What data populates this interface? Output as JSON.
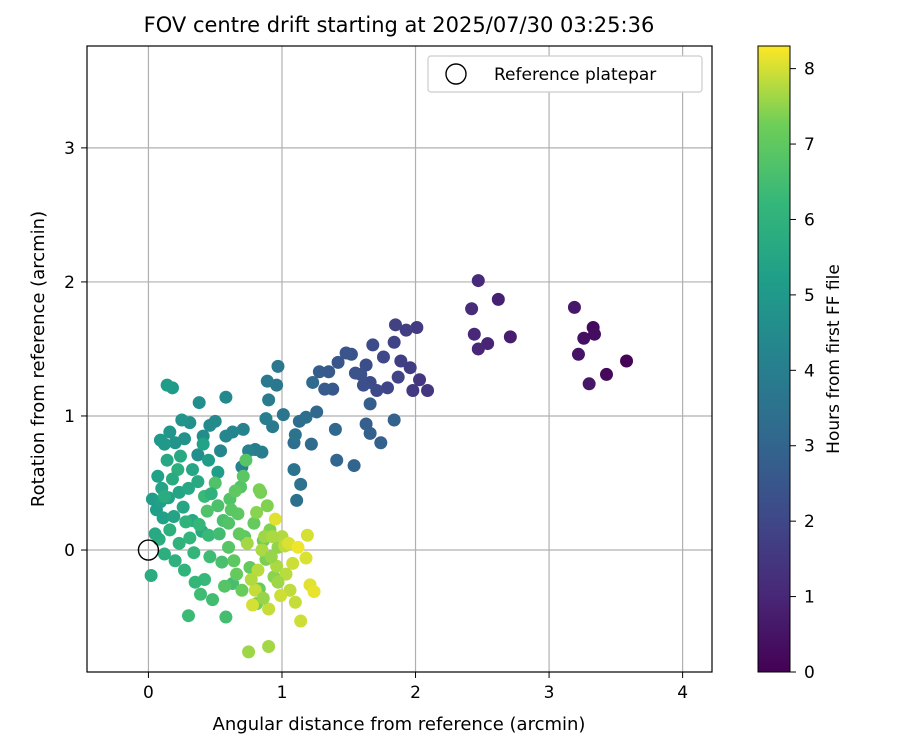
{
  "chart_data": {
    "type": "scatter",
    "title": "FOV centre drift starting at 2025/07/30 03:25:36",
    "xlabel": "Angular distance from reference (arcmin)",
    "ylabel": "Rotation from reference (arcmin)",
    "xlim": [
      -0.46,
      4.22
    ],
    "ylim": [
      -0.91,
      3.76
    ],
    "x_ticks": [
      0,
      1,
      2,
      3,
      4
    ],
    "y_ticks": [
      0,
      1,
      2,
      3
    ],
    "grid": true,
    "legend": {
      "position": "top-right",
      "entries": [
        {
          "label": "Reference platepar",
          "marker": "open-circle"
        }
      ]
    },
    "reference_point": {
      "x": 0,
      "y": 0
    },
    "colorbar": {
      "label": "Hours from first FF file",
      "range": [
        0,
        8.3
      ],
      "ticks": [
        0,
        1,
        2,
        3,
        4,
        5,
        6,
        7,
        8
      ],
      "colormap": "viridis"
    },
    "series": [
      {
        "points": [
          [
            3.58,
            1.41,
            0.1
          ],
          [
            3.43,
            1.31,
            0.18
          ],
          [
            3.33,
            1.66,
            0.25
          ],
          [
            3.34,
            1.61,
            0.32
          ],
          [
            3.26,
            1.58,
            0.4
          ],
          [
            3.22,
            1.46,
            0.48
          ],
          [
            3.3,
            1.24,
            0.55
          ],
          [
            3.19,
            1.81,
            0.62
          ],
          [
            2.71,
            1.59,
            0.75
          ],
          [
            2.62,
            1.87,
            0.85
          ],
          [
            2.54,
            1.54,
            0.92
          ],
          [
            2.47,
            1.5,
            1.0
          ],
          [
            2.44,
            1.61,
            1.05
          ],
          [
            2.47,
            2.01,
            1.1
          ],
          [
            2.42,
            1.8,
            1.15
          ],
          [
            2.09,
            1.19,
            1.45
          ],
          [
            2.03,
            1.27,
            1.5
          ],
          [
            1.98,
            1.19,
            1.55
          ],
          [
            2.01,
            1.66,
            1.6
          ],
          [
            1.96,
            1.36,
            1.65
          ],
          [
            1.93,
            1.64,
            1.7
          ],
          [
            1.89,
            1.41,
            1.75
          ],
          [
            1.85,
            1.68,
            1.8
          ],
          [
            1.87,
            1.29,
            1.85
          ],
          [
            1.84,
            1.55,
            1.9
          ],
          [
            1.79,
            1.21,
            1.95
          ],
          [
            1.76,
            1.44,
            2.0
          ],
          [
            1.71,
            1.19,
            2.05
          ],
          [
            1.68,
            1.53,
            2.1
          ],
          [
            1.66,
            1.25,
            2.15
          ],
          [
            1.63,
            1.38,
            2.2
          ],
          [
            1.61,
            1.23,
            2.25
          ],
          [
            1.59,
            1.31,
            2.3
          ],
          [
            1.55,
            1.32,
            2.35
          ],
          [
            1.52,
            1.46,
            2.4
          ],
          [
            1.48,
            1.47,
            2.45
          ],
          [
            1.42,
            1.4,
            2.5
          ],
          [
            1.38,
            1.2,
            2.55
          ],
          [
            1.35,
            1.33,
            2.6
          ],
          [
            1.32,
            1.2,
            2.65
          ],
          [
            1.28,
            1.33,
            2.7
          ],
          [
            1.66,
            1.09,
            2.75
          ],
          [
            1.63,
            0.94,
            2.8
          ],
          [
            1.66,
            0.87,
            2.85
          ],
          [
            1.74,
            0.8,
            2.9
          ],
          [
            1.84,
            0.97,
            2.95
          ],
          [
            1.54,
            0.63,
            3.0
          ],
          [
            1.41,
            0.67,
            3.05
          ],
          [
            1.4,
            0.9,
            3.1
          ],
          [
            1.26,
            1.03,
            3.15
          ],
          [
            1.23,
            1.25,
            3.2
          ],
          [
            1.22,
            0.79,
            3.25
          ],
          [
            1.13,
            0.96,
            3.3
          ],
          [
            1.09,
            0.8,
            3.35
          ],
          [
            1.18,
            0.99,
            3.4
          ],
          [
            1.11,
            0.37,
            3.45
          ],
          [
            1.14,
            0.49,
            3.5
          ],
          [
            1.09,
            0.6,
            3.55
          ],
          [
            1.1,
            0.86,
            3.6
          ],
          [
            1.01,
            1.01,
            3.65
          ],
          [
            0.97,
            1.37,
            3.7
          ],
          [
            0.96,
            1.23,
            3.75
          ],
          [
            0.89,
            1.26,
            3.8
          ],
          [
            0.93,
            0.92,
            3.85
          ],
          [
            0.9,
            1.12,
            3.9
          ],
          [
            0.88,
            0.98,
            3.95
          ],
          [
            0.85,
            0.73,
            4.0
          ],
          [
            0.8,
            0.75,
            4.05
          ],
          [
            0.75,
            0.74,
            4.1
          ],
          [
            0.7,
            0.62,
            4.15
          ],
          [
            0.71,
            0.9,
            4.2
          ],
          [
            0.63,
            0.88,
            4.25
          ],
          [
            0.58,
            0.85,
            4.3
          ],
          [
            0.54,
            0.74,
            4.35
          ],
          [
            0.58,
            1.14,
            4.4
          ],
          [
            0.5,
            0.96,
            4.45
          ],
          [
            0.46,
            0.93,
            4.5
          ],
          [
            0.41,
            0.85,
            4.55
          ],
          [
            0.37,
            0.71,
            4.6
          ],
          [
            0.38,
            1.1,
            4.65
          ],
          [
            0.31,
            0.95,
            4.7
          ],
          [
            0.27,
            0.83,
            4.75
          ],
          [
            0.25,
            0.97,
            4.8
          ],
          [
            0.2,
            0.8,
            4.85
          ],
          [
            0.16,
            0.88,
            4.9
          ],
          [
            0.12,
            0.79,
            4.95
          ],
          [
            0.09,
            0.82,
            5.0
          ],
          [
            0.18,
            1.21,
            5.05
          ],
          [
            0.14,
            1.23,
            5.1
          ],
          [
            0.45,
            0.67,
            5.15
          ],
          [
            0.52,
            0.58,
            5.2
          ],
          [
            0.03,
            0.38,
            5.1
          ],
          [
            0.06,
            0.3,
            5.2
          ],
          [
            0.09,
            0.36,
            5.25
          ],
          [
            0.11,
            0.24,
            5.3
          ],
          [
            0.15,
            0.39,
            5.35
          ],
          [
            0.19,
            0.25,
            5.4
          ],
          [
            0.23,
            0.43,
            5.45
          ],
          [
            0.26,
            0.32,
            5.5
          ],
          [
            0.3,
            0.46,
            5.55
          ],
          [
            0.33,
            0.22,
            5.6
          ],
          [
            0.37,
            0.51,
            5.65
          ],
          [
            0.4,
            0.14,
            5.7
          ],
          [
            0.02,
            -0.19,
            5.75
          ],
          [
            0.08,
            0.08,
            5.8
          ],
          [
            0.12,
            -0.03,
            5.85
          ],
          [
            0.16,
            0.15,
            5.9
          ],
          [
            0.2,
            -0.08,
            5.95
          ],
          [
            0.23,
            0.05,
            6.0
          ],
          [
            0.27,
            -0.15,
            6.05
          ],
          [
            0.31,
            0.09,
            6.1
          ],
          [
            0.34,
            -0.02,
            6.15
          ],
          [
            0.38,
            0.19,
            6.2
          ],
          [
            0.42,
            -0.22,
            6.25
          ],
          [
            0.45,
            0.11,
            6.3
          ],
          [
            0.3,
            -0.49,
            6.35
          ],
          [
            0.39,
            -0.33,
            6.4
          ],
          [
            0.48,
            -0.37,
            6.45
          ],
          [
            0.58,
            -0.5,
            6.5
          ],
          [
            0.63,
            -0.25,
            6.55
          ],
          [
            0.55,
            -0.09,
            6.6
          ],
          [
            0.52,
            0.33,
            6.65
          ],
          [
            0.44,
            0.29,
            6.7
          ],
          [
            0.61,
            0.38,
            6.75
          ],
          [
            0.69,
            0.47,
            6.8
          ],
          [
            0.73,
            0.67,
            6.85
          ],
          [
            0.71,
            0.55,
            6.9
          ],
          [
            0.67,
            0.27,
            6.95
          ],
          [
            0.72,
            0.1,
            7.0
          ],
          [
            0.76,
            -0.13,
            7.05
          ],
          [
            0.79,
            0.2,
            7.1
          ],
          [
            0.83,
            -0.29,
            7.15
          ],
          [
            0.86,
            0.07,
            7.2
          ],
          [
            0.81,
            -0.4,
            7.25
          ],
          [
            0.84,
            0.43,
            7.3
          ],
          [
            0.88,
            -0.07,
            7.35
          ],
          [
            0.91,
            0.15,
            7.4
          ],
          [
            0.94,
            -0.2,
            7.45
          ],
          [
            0.97,
            0.02,
            7.5
          ],
          [
            0.75,
            -0.76,
            7.6
          ],
          [
            0.9,
            -0.72,
            7.65
          ],
          [
            0.96,
            -0.12,
            7.7
          ],
          [
            1.0,
            0.1,
            7.75
          ],
          [
            1.03,
            -0.18,
            7.8
          ],
          [
            1.06,
            -0.3,
            7.85
          ],
          [
            1.1,
            -0.39,
            7.9
          ],
          [
            1.14,
            -0.53,
            7.95
          ],
          [
            1.19,
            0.11,
            8.0
          ],
          [
            1.18,
            -0.06,
            8.05
          ],
          [
            1.21,
            -0.26,
            8.1
          ],
          [
            1.24,
            -0.31,
            8.15
          ],
          [
            0.78,
            -0.41,
            8.0
          ],
          [
            0.8,
            -0.3,
            7.9
          ],
          [
            0.82,
            -0.15,
            7.8
          ],
          [
            0.85,
            0.0,
            7.7
          ],
          [
            0.87,
            0.1,
            7.6
          ],
          [
            0.92,
            -0.05,
            7.55
          ],
          [
            0.95,
            0.23,
            8.1
          ],
          [
            0.99,
            -0.34,
            7.95
          ],
          [
            1.02,
            0.03,
            7.85
          ],
          [
            0.74,
            0.05,
            7.65
          ],
          [
            0.77,
            -0.22,
            7.75
          ],
          [
            0.9,
            -0.44,
            7.9
          ],
          [
            0.5,
            0.5,
            6.7
          ],
          [
            0.56,
            0.22,
            6.6
          ],
          [
            0.6,
            0.02,
            6.85
          ],
          [
            0.64,
            -0.08,
            6.95
          ],
          [
            0.68,
            0.12,
            7.05
          ],
          [
            0.7,
            -0.3,
            7.15
          ],
          [
            0.46,
            -0.05,
            6.4
          ],
          [
            0.42,
            0.4,
            6.3
          ],
          [
            0.35,
            -0.24,
            6.2
          ],
          [
            0.28,
            0.21,
            6.0
          ],
          [
            0.22,
            0.6,
            5.85
          ],
          [
            0.18,
            0.53,
            5.7
          ],
          [
            0.14,
            0.67,
            5.55
          ],
          [
            0.1,
            0.46,
            5.4
          ],
          [
            0.07,
            0.55,
            5.3
          ],
          [
            0.05,
            0.12,
            5.6
          ],
          [
            0.12,
            0.4,
            5.75
          ],
          [
            0.24,
            0.7,
            5.65
          ],
          [
            0.33,
            0.6,
            5.5
          ],
          [
            0.41,
            0.79,
            5.35
          ],
          [
            0.47,
            0.42,
            5.95
          ],
          [
            0.53,
            0.12,
            6.45
          ],
          [
            0.57,
            -0.27,
            6.8
          ],
          [
            0.62,
            0.3,
            6.9
          ],
          [
            0.66,
            -0.18,
            7.1
          ],
          [
            0.81,
            0.28,
            7.45
          ],
          [
            0.86,
            -0.36,
            7.55
          ],
          [
            0.93,
            0.1,
            7.7
          ],
          [
            0.97,
            -0.24,
            7.6
          ],
          [
            1.05,
            0.05,
            8.05
          ],
          [
            1.08,
            -0.1,
            7.95
          ],
          [
            1.12,
            0.02,
            8.2
          ],
          [
            0.83,
            0.45,
            7.35
          ],
          [
            0.89,
            0.33,
            7.4
          ],
          [
            0.65,
            0.44,
            7.0
          ],
          [
            0.6,
            0.2,
            6.75
          ]
        ]
      }
    ]
  }
}
